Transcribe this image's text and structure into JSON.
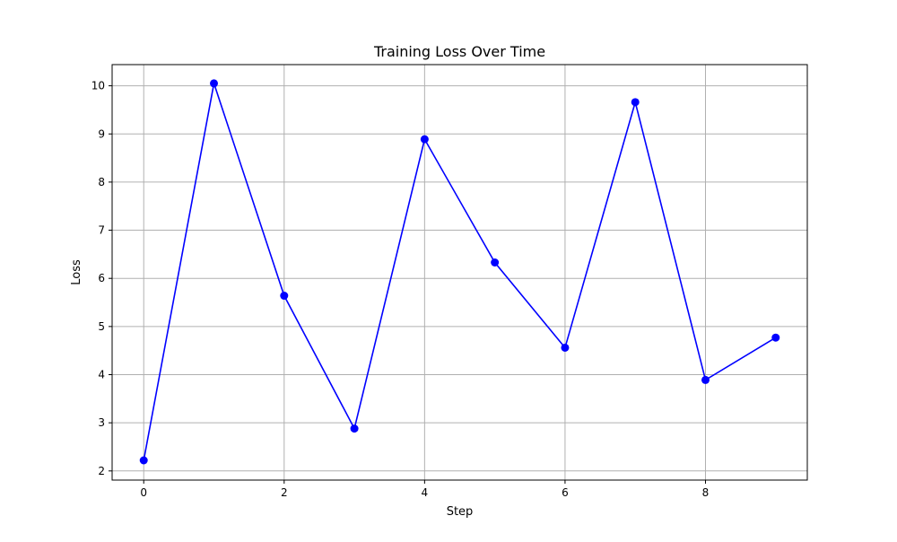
{
  "colors": {
    "series_line": "#0000ff",
    "series_marker": "#0000ff",
    "grid": "#b0b0b0",
    "axes": "#000000",
    "background": "#ffffff"
  },
  "chart_data": {
    "type": "line",
    "title": "Training Loss Over Time",
    "xlabel": "Step",
    "ylabel": "Loss",
    "x": [
      0,
      1,
      2,
      3,
      4,
      5,
      6,
      7,
      8,
      9
    ],
    "series": [
      {
        "values": [
          2.22,
          10.05,
          5.64,
          2.88,
          8.89,
          6.33,
          4.56,
          9.66,
          3.89,
          4.77
        ],
        "marker": "circle",
        "color": "#0000ff"
      }
    ],
    "xlim": [
      -0.45,
      9.45
    ],
    "ylim": [
      1.81,
      10.44
    ],
    "xticks": [
      0,
      2,
      4,
      6,
      8
    ],
    "yticks": [
      2,
      3,
      4,
      5,
      6,
      7,
      8,
      9,
      10
    ],
    "grid": true,
    "legend": "none"
  }
}
